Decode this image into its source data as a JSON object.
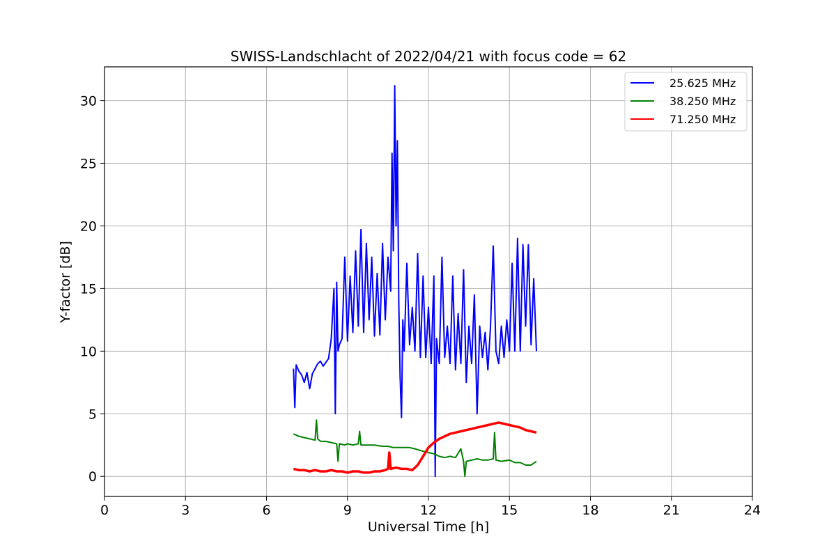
{
  "chart_data": {
    "type": "line",
    "title": "SWISS-Landschlacht of 2022/04/21 with focus code = 62",
    "xlabel": "Universal Time [h]",
    "ylabel": "Y-factor [dB]",
    "xlim": [
      0,
      24
    ],
    "ylim": [
      -1.6,
      32.7
    ],
    "xticks": [
      0,
      3,
      6,
      9,
      12,
      15,
      18,
      21,
      24
    ],
    "yticks": [
      0,
      5,
      10,
      15,
      20,
      25,
      30
    ],
    "grid": true,
    "legend_position": "upper right",
    "series": [
      {
        "name": "25.625 MHz",
        "color": "#0000ff",
        "x": [
          7.0,
          7.05,
          7.1,
          7.2,
          7.3,
          7.4,
          7.5,
          7.6,
          7.7,
          7.8,
          7.9,
          8.0,
          8.1,
          8.2,
          8.3,
          8.4,
          8.5,
          8.55,
          8.6,
          8.65,
          8.7,
          8.8,
          8.9,
          9.0,
          9.1,
          9.2,
          9.3,
          9.4,
          9.5,
          9.6,
          9.7,
          9.8,
          9.9,
          10.0,
          10.1,
          10.2,
          10.3,
          10.4,
          10.5,
          10.6,
          10.65,
          10.7,
          10.75,
          10.8,
          10.85,
          10.9,
          10.95,
          11.0,
          11.05,
          11.1,
          11.2,
          11.3,
          11.4,
          11.5,
          11.6,
          11.7,
          11.8,
          11.9,
          12.0,
          12.1,
          12.2,
          12.25,
          12.3,
          12.4,
          12.5,
          12.6,
          12.7,
          12.8,
          12.9,
          13.0,
          13.1,
          13.2,
          13.3,
          13.4,
          13.5,
          13.6,
          13.7,
          13.8,
          13.9,
          14.0,
          14.1,
          14.2,
          14.3,
          14.4,
          14.5,
          14.6,
          14.7,
          14.8,
          14.9,
          15.0,
          15.1,
          15.2,
          15.3,
          15.4,
          15.5,
          15.6,
          15.7,
          15.8,
          15.9,
          16.0
        ],
        "y": [
          8.6,
          5.5,
          8.9,
          8.4,
          8.1,
          7.5,
          8.3,
          7.0,
          8.2,
          8.6,
          9.0,
          9.2,
          8.8,
          9.1,
          9.4,
          11.0,
          15.0,
          5.0,
          15.5,
          10.0,
          10.5,
          11.0,
          17.5,
          10.8,
          16.0,
          11.5,
          18.0,
          12.0,
          19.7,
          11.5,
          18.6,
          12.5,
          17.5,
          11.2,
          16.2,
          11.3,
          18.6,
          12.5,
          17.5,
          14.8,
          25.8,
          18.0,
          31.2,
          20.0,
          26.8,
          14.0,
          8.0,
          4.7,
          12.5,
          10.0,
          17.0,
          10.5,
          13.5,
          10.0,
          17.8,
          9.5,
          16.0,
          9.5,
          13.5,
          9.0,
          16.0,
          0.0,
          11.0,
          9.0,
          17.5,
          9.5,
          12.0,
          9.0,
          16.0,
          8.5,
          13.0,
          9.0,
          16.5,
          7.5,
          12.0,
          9.0,
          14.5,
          5.0,
          12.0,
          9.5,
          11.5,
          8.5,
          12.0,
          18.4,
          10.0,
          9.0,
          12.0,
          9.5,
          12.5,
          10.0,
          17.0,
          10.0,
          19.0,
          10.0,
          18.5,
          12.0,
          18.5,
          10.5,
          15.8,
          10.0
        ]
      },
      {
        "name": "38.250 MHz",
        "color": "#008000",
        "x": [
          7.0,
          7.2,
          7.4,
          7.6,
          7.8,
          7.85,
          7.9,
          8.0,
          8.2,
          8.4,
          8.6,
          8.65,
          8.7,
          8.9,
          9.0,
          9.2,
          9.4,
          9.45,
          9.5,
          9.7,
          10.0,
          10.3,
          10.5,
          10.7,
          11.0,
          11.3,
          11.5,
          11.8,
          12.0,
          12.2,
          12.4,
          12.6,
          12.8,
          13.0,
          13.2,
          13.3,
          13.35,
          13.4,
          13.6,
          13.8,
          14.0,
          14.2,
          14.4,
          14.45,
          14.5,
          14.7,
          15.0,
          15.2,
          15.4,
          15.6,
          15.8,
          16.0
        ],
        "y": [
          3.4,
          3.2,
          3.1,
          3.0,
          2.9,
          4.5,
          3.0,
          2.8,
          2.8,
          2.7,
          2.6,
          1.2,
          2.6,
          2.5,
          2.6,
          2.5,
          2.6,
          3.6,
          2.5,
          2.5,
          2.5,
          2.4,
          2.4,
          2.3,
          2.3,
          2.3,
          2.2,
          2.0,
          1.9,
          1.8,
          1.6,
          1.5,
          1.6,
          1.5,
          2.2,
          1.2,
          0.0,
          1.2,
          1.3,
          1.4,
          1.3,
          1.3,
          1.4,
          3.5,
          1.3,
          1.2,
          1.3,
          1.1,
          1.1,
          0.9,
          0.9,
          1.2
        ]
      },
      {
        "name": "71.250 MHz",
        "color": "#ff0000",
        "x": [
          7.0,
          7.2,
          7.4,
          7.6,
          7.8,
          8.0,
          8.2,
          8.4,
          8.6,
          8.8,
          9.0,
          9.2,
          9.4,
          9.6,
          9.8,
          10.0,
          10.2,
          10.4,
          10.5,
          10.55,
          10.6,
          10.8,
          11.0,
          11.2,
          11.4,
          11.6,
          11.8,
          12.0,
          12.2,
          12.4,
          12.6,
          12.8,
          13.0,
          13.2,
          13.4,
          13.6,
          13.8,
          14.0,
          14.2,
          14.4,
          14.6,
          14.8,
          15.0,
          15.2,
          15.4,
          15.6,
          15.8,
          16.0
        ],
        "y": [
          0.6,
          0.5,
          0.5,
          0.4,
          0.5,
          0.4,
          0.4,
          0.5,
          0.4,
          0.4,
          0.3,
          0.4,
          0.4,
          0.3,
          0.3,
          0.4,
          0.4,
          0.5,
          0.6,
          1.9,
          0.6,
          0.7,
          0.6,
          0.6,
          0.5,
          0.9,
          1.6,
          2.3,
          2.7,
          3.0,
          3.2,
          3.4,
          3.5,
          3.6,
          3.7,
          3.8,
          3.9,
          4.0,
          4.1,
          4.2,
          4.3,
          4.2,
          4.1,
          4.0,
          3.9,
          3.7,
          3.6,
          3.5
        ]
      }
    ]
  }
}
